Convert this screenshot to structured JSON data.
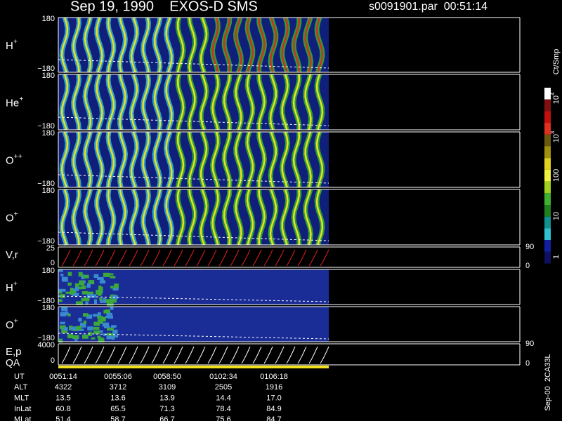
{
  "header": {
    "title": "Sep 19, 1990    EXOS-D SMS",
    "file": "s0091901.par  00:51:14"
  },
  "panels": [
    {
      "label": {
        "base": "H",
        "sup": "+"
      },
      "left_ticks": [
        "180",
        "−180"
      ]
    },
    {
      "label": {
        "base": "He",
        "sup": "+"
      },
      "left_ticks": [
        "180",
        "−180"
      ]
    },
    {
      "label": {
        "base": "O",
        "sup": "++"
      },
      "left_ticks": [
        "180",
        "−180"
      ]
    },
    {
      "label": {
        "base": "O",
        "sup": "+"
      },
      "left_ticks": [
        "180",
        "−180"
      ]
    },
    {
      "label": {
        "base": "V,r",
        "sup": ""
      },
      "left_ticks": [
        "25",
        "0"
      ],
      "right_ticks": [
        "90",
        "0"
      ]
    },
    {
      "label": {
        "base": "H",
        "sup": "+"
      },
      "left_ticks": [
        "180",
        "−180"
      ]
    },
    {
      "label": {
        "base": "O",
        "sup": "+"
      },
      "left_ticks": [
        "180",
        "−180"
      ]
    },
    {
      "label": {
        "base": "E,p",
        "sup": ""
      },
      "left_ticks": [
        "4000",
        "0"
      ],
      "right_ticks": [
        "90",
        "0"
      ],
      "qa_label": "QA"
    }
  ],
  "colorbar": {
    "title": "Ct/Smp",
    "labels": [
      {
        "base": "10",
        "sup": "4"
      },
      {
        "base": "10",
        "sup": "3"
      },
      {
        "base": "100",
        "sup": ""
      },
      {
        "base": "10",
        "sup": ""
      },
      {
        "base": "1",
        "sup": ""
      }
    ]
  },
  "footer": {
    "rows": [
      [
        "UT",
        "0051:14",
        "0055:06",
        "0058:50",
        "0102:34",
        "0106:18"
      ],
      [
        "ALT",
        "4322",
        "3712",
        "3109",
        "2505",
        "1916"
      ],
      [
        "MLT",
        "13.5",
        "13.6",
        "13.9",
        "14.4",
        "17.0"
      ],
      [
        "InLat",
        "60.8",
        "65.5",
        "71.3",
        "78.4",
        "84.9"
      ],
      [
        "MLat",
        "51.4",
        "58.7",
        "66.7",
        "75.6",
        "84.7"
      ]
    ]
  },
  "stamp": "Sep-00  2CA33L"
}
